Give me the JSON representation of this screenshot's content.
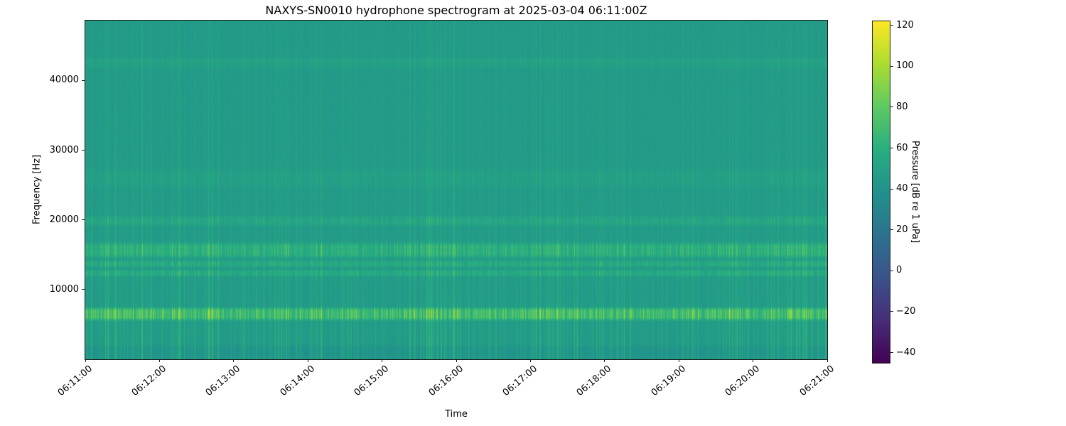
{
  "figure": {
    "title": "NAXYS-SN0010 hydrophone spectrogram at 2025-03-04 06:11:00Z",
    "xlabel": "Time",
    "ylabel": "Frequency [Hz]",
    "colorbar_label": "Pressure [dB re 1 uPa]"
  },
  "chart_data": {
    "type": "heatmap",
    "subtype": "spectrogram",
    "title": "NAXYS-SN0010 hydrophone spectrogram at 2025-03-04 06:11:00Z",
    "xlabel": "Time",
    "ylabel": "Frequency [Hz]",
    "grid": false,
    "x_tick_labels": [
      "06:11:00",
      "06:12:00",
      "06:13:00",
      "06:14:00",
      "06:15:00",
      "06:16:00",
      "06:17:00",
      "06:18:00",
      "06:19:00",
      "06:20:00",
      "06:21:00"
    ],
    "x_tick_rotation_deg": 40,
    "y_ticks": [
      {
        "label": "10000",
        "value": 10000
      },
      {
        "label": "20000",
        "value": 20000
      },
      {
        "label": "30000",
        "value": 30000
      },
      {
        "label": "40000",
        "value": 40000
      }
    ],
    "ylim_hz": [
      0,
      48600
    ],
    "time_span_minutes": 10,
    "background_level_db": 45,
    "colorbar": {
      "label": "Pressure [dB re 1 uPa]",
      "colormap": "viridis",
      "vmin": -45,
      "vmax": 122,
      "ticks": [
        {
          "label": "120",
          "value": 120
        },
        {
          "label": "100",
          "value": 100
        },
        {
          "label": "80",
          "value": 80
        },
        {
          "label": "60",
          "value": 60
        },
        {
          "label": "40",
          "value": 40
        },
        {
          "label": "20",
          "value": 20
        },
        {
          "label": "0",
          "value": 0
        },
        {
          "label": "−20",
          "value": -20
        },
        {
          "label": "−40",
          "value": -40
        }
      ],
      "viridis_anchors": [
        "#440154",
        "#472d7b",
        "#3b528b",
        "#2c728e",
        "#21918c",
        "#28ae80",
        "#5ec962",
        "#addc30",
        "#fde725"
      ]
    },
    "horizontal_bands": [
      {
        "freq_lo_hz": 0,
        "freq_hi_hz": 1900,
        "level_db_offset": -5,
        "dash_factor": 0.0,
        "note": "slightly darker strip below ~2 kHz"
      },
      {
        "freq_lo_hz": 5700,
        "freq_hi_hz": 7300,
        "level_db_offset": 36,
        "dash_factor": 0.9,
        "note": "brightest dashed tonal band ~6.5 kHz"
      },
      {
        "freq_lo_hz": 11900,
        "freq_hi_hz": 12800,
        "level_db_offset": 13,
        "dash_factor": 0.85,
        "note": "dashed band ~12.3 kHz"
      },
      {
        "freq_lo_hz": 13300,
        "freq_hi_hz": 14100,
        "level_db_offset": 15,
        "dash_factor": 0.85,
        "note": "dashed band ~13.7 kHz"
      },
      {
        "freq_lo_hz": 14700,
        "freq_hi_hz": 16600,
        "level_db_offset": 21,
        "dash_factor": 0.85,
        "note": "bright dashed band 15-16.5 kHz"
      },
      {
        "freq_lo_hz": 19200,
        "freq_hi_hz": 20500,
        "level_db_offset": 10,
        "dash_factor": 0.8,
        "note": "moderate dashed band ~20 kHz"
      },
      {
        "freq_lo_hz": 24800,
        "freq_hi_hz": 27200,
        "level_db_offset": 5,
        "dash_factor": 0.7,
        "note": "faint band ~26 kHz"
      },
      {
        "freq_lo_hz": 41800,
        "freq_hi_hz": 43300,
        "level_db_offset": 4.5,
        "dash_factor": 0.15,
        "note": "faint smooth line ~42.5 kHz"
      }
    ],
    "vertical_streaks": {
      "description": "broadband transient vertical streaks (clicks) across the whole record, brighter at low frequency and inside tonal bands",
      "approx_count": 240,
      "max_level_db_offset": 22
    }
  }
}
